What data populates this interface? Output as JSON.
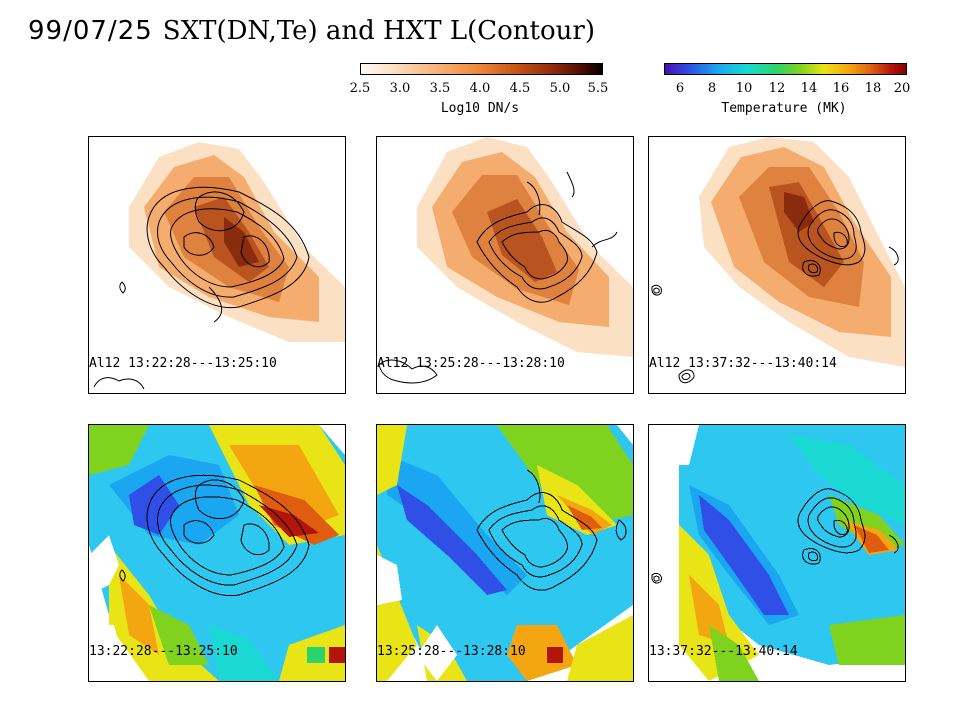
{
  "title": {
    "date": "99/07/25",
    "text": "SXT(DN,Te) and HXT L(Contour)"
  },
  "colorbars": {
    "dn": {
      "ticks": [
        "2.5",
        "3.0",
        "3.5",
        "4.0",
        "4.5",
        "5.0",
        "5.5"
      ],
      "label": "Log10 DN/s"
    },
    "te": {
      "ticks": [
        "6",
        "8",
        "10",
        "12",
        "14",
        "16",
        "18",
        "20"
      ],
      "label": "Temperature (MK)"
    }
  },
  "panels": {
    "top": [
      {
        "label": "Al12 13:22:28---13:25:10"
      },
      {
        "label": "Al12 13:25:28---13:28:10"
      },
      {
        "label": "Al12 13:37:32---13:40:14"
      }
    ],
    "bottom": [
      {
        "label": "13:22:28---13:25:10"
      },
      {
        "label": "13:25:28---13:28:10"
      },
      {
        "label": "13:37:32---13:40:14"
      }
    ]
  }
}
